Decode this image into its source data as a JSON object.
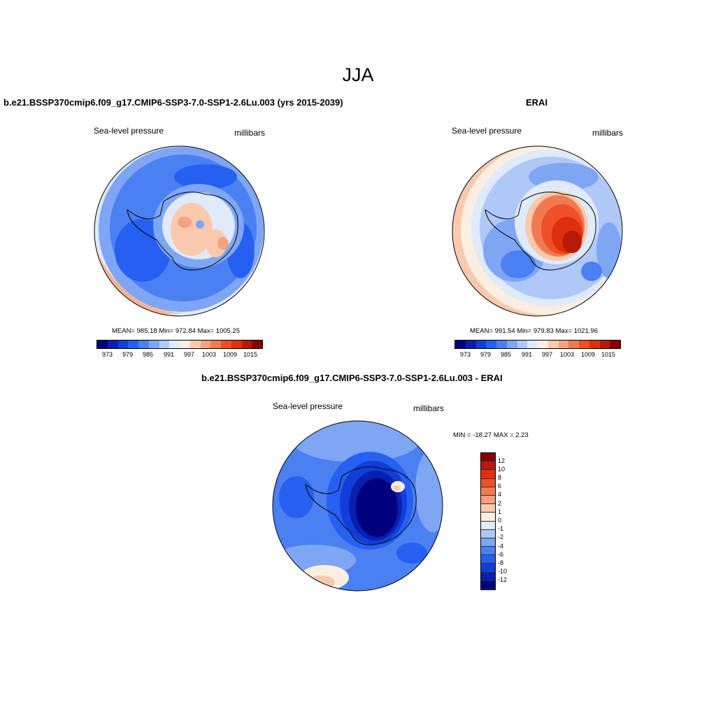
{
  "page_title": "JJA",
  "panels": [
    {
      "title": "b.e21.BSSP370cmip6.f09_g17.CMIP6-SSP3-7.0-SSP1-2.6Lu.003 (yrs 2015-2039)",
      "field_label": "Sea-level pressure",
      "units": "millibars",
      "stats": "MEAN= 985.18  Min= 972.84  Max= 1005.25",
      "colorbar_ticks": [
        "973",
        "979",
        "985",
        "991",
        "997",
        "1003",
        "1009",
        "1015"
      ]
    },
    {
      "title": "ERAI",
      "field_label": "Sea-level pressure",
      "units": "millibars",
      "stats": "MEAN= 991.54  Min= 979.83  Max= 1021.96",
      "colorbar_ticks": [
        "973",
        "979",
        "985",
        "991",
        "997",
        "1003",
        "1009",
        "1015"
      ]
    },
    {
      "title": "b.e21.BSSP370cmip6.f09_g17.CMIP6-SSP3-7.0-SSP1-2.6Lu.003 - ERAI",
      "field_label": "Sea-level pressure",
      "units": "millibars",
      "stats": "MIN = -18.27 MAX =   2.23",
      "colorbar_ticks": [
        "12",
        "10",
        "8",
        "6",
        "4",
        "2",
        "1",
        "0",
        "-1",
        "-2",
        "-4",
        "-6",
        "-8",
        "-10",
        "-12"
      ]
    }
  ],
  "colors": {
    "abs_scale": [
      "#00007f",
      "#0a1fb0",
      "#0f3fd8",
      "#2560f0",
      "#4a80f2",
      "#7fa6f4",
      "#b0c8f7",
      "#dfeafb",
      "#fdeee2",
      "#f9c9ad",
      "#f6a27e",
      "#f37a50",
      "#ee5028",
      "#de300f",
      "#b81a0a",
      "#870000"
    ],
    "diff_scale": [
      "#870000",
      "#b81a0a",
      "#de300f",
      "#ee5028",
      "#f37a50",
      "#f6a27e",
      "#f9c9ad",
      "#fdeee2",
      "#dfeafb",
      "#b0c8f7",
      "#7fa6f4",
      "#4a80f2",
      "#2560f0",
      "#0f3fd8",
      "#0a1fb0",
      "#00007f"
    ]
  }
}
